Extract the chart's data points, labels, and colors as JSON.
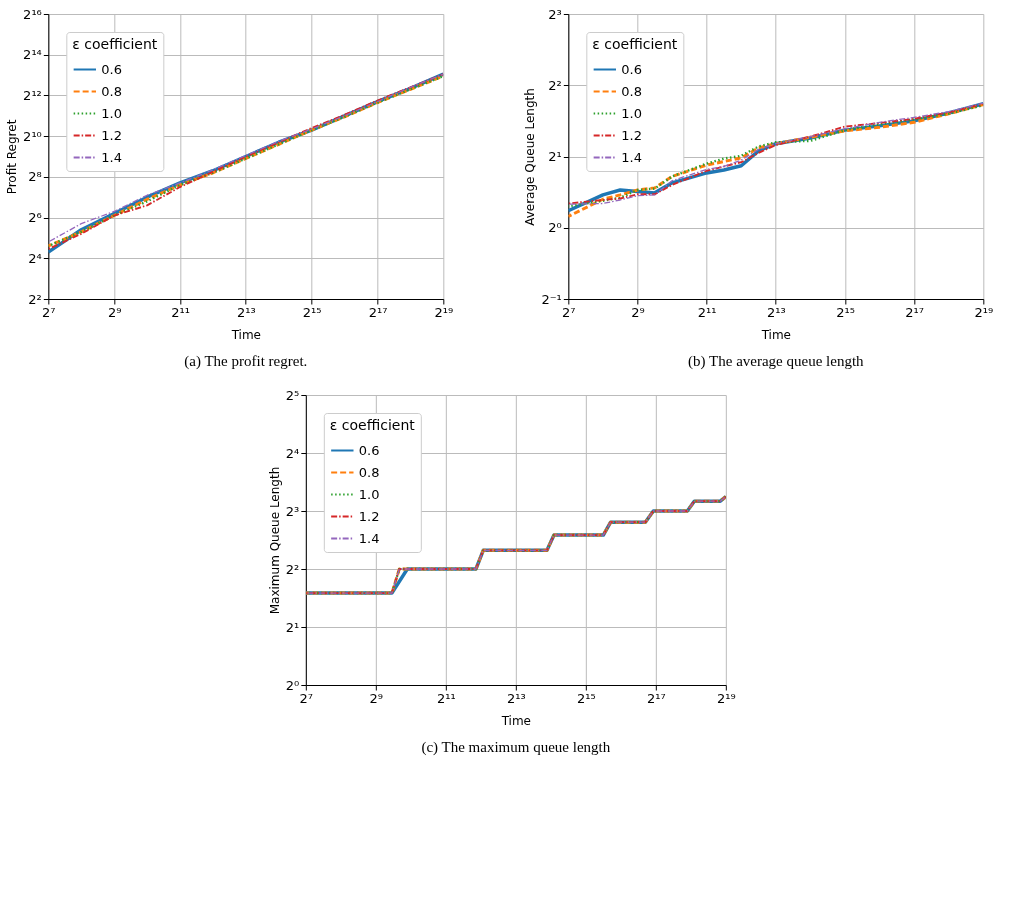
{
  "chart_data": [
    {
      "type": "line",
      "xlabel": "Time",
      "ylabel": "Profit Regret",
      "legend_title": "ε coefficient",
      "legend": "top left",
      "grid": true,
      "log": "xy",
      "annotations": [
        "(a) The profit regret."
      ],
      "x": [
        128,
        256,
        512,
        1024,
        2048,
        4096,
        8192,
        16384,
        32768,
        65536,
        131072,
        262144,
        524288
      ],
      "xlim": [
        128,
        524288
      ],
      "xticks": [
        {
          "value": 128,
          "label": "2⁷"
        },
        {
          "value": 512,
          "label": "2⁹"
        },
        {
          "value": 2048,
          "label": "2¹¹"
        },
        {
          "value": 8192,
          "label": "2¹³"
        },
        {
          "value": 32768,
          "label": "2¹⁵"
        },
        {
          "value": 131072,
          "label": "2¹⁷"
        },
        {
          "value": 524288,
          "label": "2¹⁹"
        }
      ],
      "ylim": [
        4,
        65536
      ],
      "yticks": [
        {
          "value": 4,
          "label": "2²"
        },
        {
          "value": 16,
          "label": "2⁴"
        },
        {
          "value": 64,
          "label": "2⁶"
        },
        {
          "value": 256,
          "label": "2⁸"
        },
        {
          "value": 1024,
          "label": "2¹⁰"
        },
        {
          "value": 4096,
          "label": "2¹²"
        },
        {
          "value": 16384,
          "label": "2¹⁴"
        },
        {
          "value": 65536,
          "label": "2¹⁶"
        }
      ],
      "series": [
        {
          "name": "0.6",
          "color": "#1f77b4",
          "line_style": "solid",
          "values": [
            19.7,
            42.2,
            73.5,
            128,
            208,
            315,
            512,
            832,
            1261,
            2048,
            3327,
            5219,
            8479
          ]
        },
        {
          "name": "0.8",
          "color": "#ff7f0e",
          "line_style": "dashed",
          "values": [
            24.3,
            39.4,
            68.6,
            119,
            194,
            294,
            478,
            776,
            1261,
            1978,
            3213,
            5043,
            7911
          ]
        },
        {
          "name": "1.0",
          "color": "#2ca02c",
          "line_style": "dotted",
          "values": [
            24.3,
            39.4,
            68.6,
            111,
            194,
            294,
            478,
            776,
            1261,
            1978,
            3213,
            5043,
            7911
          ]
        },
        {
          "name": "1.2",
          "color": "#d62728",
          "line_style": "dashdot",
          "values": [
            21.9,
            36.8,
            68.6,
            97.0,
            181,
            304,
            512,
            832,
            1351,
            2120,
            3444,
            5405,
            8479
          ]
        },
        {
          "name": "1.4",
          "color": "#9467bd",
          "line_style": "dashdot",
          "values": [
            27.9,
            52.0,
            78.8,
            137,
            208,
            326,
            530,
            861,
            1305,
            2048,
            3327,
            5405,
            8479
          ]
        }
      ]
    },
    {
      "type": "line",
      "xlabel": "Time",
      "ylabel": "Average Queue Length",
      "legend_title": "ε coefficient",
      "legend": "top left",
      "grid": true,
      "log": "xy",
      "annotations": [
        "(b) The average queue length"
      ],
      "x": [
        128,
        256,
        362,
        512,
        724,
        1024,
        2048,
        2896,
        4096,
        5793,
        8192,
        16384,
        32768,
        65536,
        131072,
        262144,
        524288
      ],
      "xlim": [
        128,
        524288
      ],
      "xticks": [
        {
          "value": 128,
          "label": "2⁷"
        },
        {
          "value": 512,
          "label": "2⁹"
        },
        {
          "value": 2048,
          "label": "2¹¹"
        },
        {
          "value": 8192,
          "label": "2¹³"
        },
        {
          "value": 32768,
          "label": "2¹⁵"
        },
        {
          "value": 131072,
          "label": "2¹⁷"
        },
        {
          "value": 524288,
          "label": "2¹⁹"
        }
      ],
      "ylim": [
        0.5,
        8
      ],
      "yticks": [
        {
          "value": 0.5,
          "label": "2⁻¹"
        },
        {
          "value": 1,
          "label": "2⁰"
        },
        {
          "value": 2,
          "label": "2¹"
        },
        {
          "value": 4,
          "label": "2²"
        },
        {
          "value": 8,
          "label": "2³"
        }
      ],
      "series": [
        {
          "name": "0.6",
          "color": "#1f77b4",
          "line_style": "solid",
          "values": [
            1.181,
            1.376,
            1.444,
            1.424,
            1.404,
            1.548,
            1.705,
            1.753,
            1.828,
            2.114,
            2.266,
            2.395,
            2.585,
            2.694,
            2.828,
            3.053,
            3.34
          ]
        },
        {
          "name": "0.8",
          "color": "#ff7f0e",
          "line_style": "dashed",
          "values": [
            1.117,
            1.32,
            1.376,
            1.444,
            1.474,
            1.647,
            1.84,
            1.905,
            1.973,
            2.173,
            2.266,
            2.412,
            2.567,
            2.657,
            2.789,
            3.031,
            3.317
          ]
        },
        {
          "name": "1.0",
          "color": "#2ca02c",
          "line_style": "dotted",
          "values": [
            1.231,
            1.301,
            1.338,
            1.444,
            1.464,
            1.647,
            1.866,
            1.959,
            2.014,
            2.204,
            2.297,
            2.329,
            2.585,
            2.732,
            2.868,
            3.031,
            3.294
          ]
        },
        {
          "name": "1.2",
          "color": "#d62728",
          "line_style": "dashdot",
          "values": [
            1.266,
            1.31,
            1.329,
            1.385,
            1.385,
            1.516,
            1.741,
            1.815,
            1.892,
            2.071,
            2.235,
            2.428,
            2.676,
            2.77,
            2.888,
            3.074,
            3.34
          ]
        },
        {
          "name": "1.4",
          "color": "#9467bd",
          "line_style": "dashdot",
          "values": [
            1.257,
            1.266,
            1.31,
            1.366,
            1.376,
            1.58,
            1.765,
            1.815,
            1.932,
            2.144,
            2.266,
            2.428,
            2.621,
            2.789,
            2.928,
            3.095,
            3.364
          ]
        }
      ]
    },
    {
      "type": "line",
      "xlabel": "Time",
      "ylabel": "Maximum Queue Length",
      "legend_title": "ε coefficient",
      "legend": "top left",
      "grid": true,
      "log": "xy",
      "annotations": [
        "(c) The maximum queue length"
      ],
      "x": [
        128,
        704,
        815,
        3717,
        4299,
        15180,
        17440,
        46341,
        53560,
        106500,
        124800,
        244600,
        280900,
        469900,
        524288
      ],
      "xlim": [
        128,
        524288
      ],
      "xticks": [
        {
          "value": 128,
          "label": "2⁷"
        },
        {
          "value": 512,
          "label": "2⁹"
        },
        {
          "value": 2048,
          "label": "2¹¹"
        },
        {
          "value": 8192,
          "label": "2¹³"
        },
        {
          "value": 32768,
          "label": "2¹⁵"
        },
        {
          "value": 131072,
          "label": "2¹⁷"
        },
        {
          "value": 524288,
          "label": "2¹⁹"
        }
      ],
      "ylim": [
        1,
        32
      ],
      "yticks": [
        {
          "value": 1,
          "label": "2⁰"
        },
        {
          "value": 2,
          "label": "2¹"
        },
        {
          "value": 4,
          "label": "2²"
        },
        {
          "value": 8,
          "label": "2³"
        },
        {
          "value": 16,
          "label": "2⁴"
        },
        {
          "value": 32,
          "label": "2⁵"
        }
      ],
      "series": [
        {
          "name": "0.6",
          "color": "#1f77b4",
          "line_style": "solid",
          "x": [
            128,
            704,
            955,
            3717,
            4299,
            15180,
            17440,
            46341,
            53560,
            106500,
            124800,
            244600,
            280900,
            469900,
            524288
          ],
          "values": [
            3,
            3,
            4,
            4,
            5,
            5,
            6,
            6,
            7,
            7,
            8,
            8,
            9,
            9,
            9.5
          ]
        },
        {
          "name": "0.8",
          "color": "#ff7f0e",
          "line_style": "dashed",
          "values": [
            3,
            3,
            4,
            4,
            5,
            5,
            6,
            6,
            7,
            7,
            8,
            8,
            9,
            9,
            9.5
          ]
        },
        {
          "name": "1.0",
          "color": "#2ca02c",
          "line_style": "dotted",
          "values": [
            3,
            3,
            4,
            4,
            5,
            5,
            6,
            6,
            7,
            7,
            8,
            8,
            9,
            9,
            9.5
          ]
        },
        {
          "name": "1.2",
          "color": "#d62728",
          "line_style": "dashdot",
          "values": [
            3,
            3,
            4,
            4,
            5,
            5,
            6,
            6,
            7,
            7,
            8,
            8,
            9,
            9,
            9.5
          ]
        },
        {
          "name": "1.4",
          "color": "#9467bd",
          "line_style": "dashdot",
          "values": [
            3,
            3,
            4,
            4,
            5,
            5,
            6,
            6,
            7,
            7,
            8,
            8,
            9,
            9,
            9.5
          ]
        }
      ]
    }
  ]
}
